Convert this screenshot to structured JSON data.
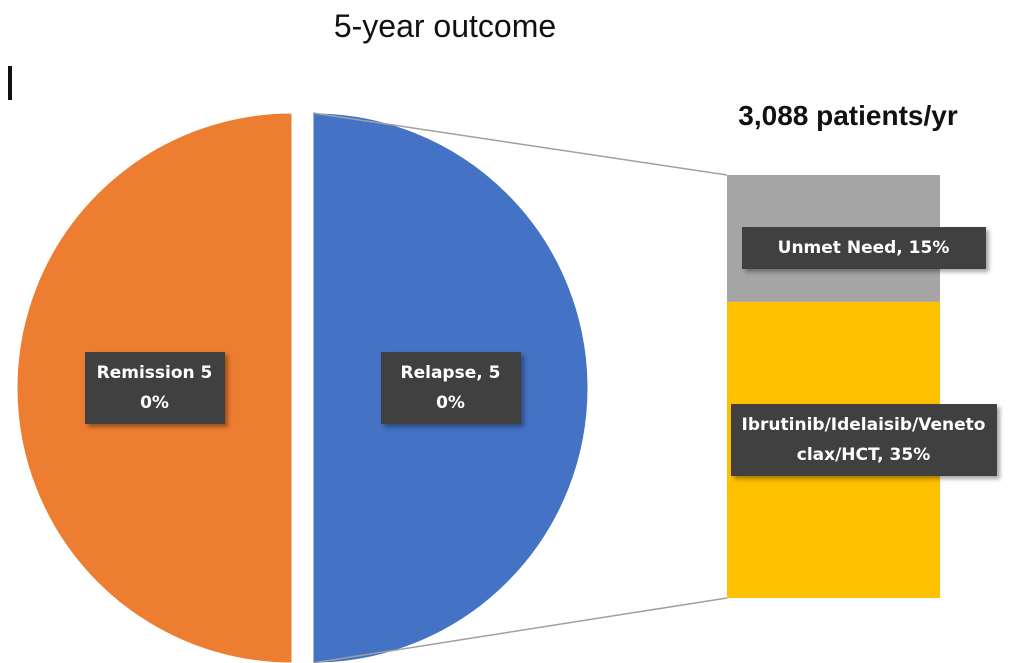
{
  "chart_data": {
    "type": "pie-of-bar",
    "title": "5-year outcome",
    "annotation": "3,088 patients/yr",
    "values": [
      50,
      50
    ],
    "value_labels": [
      "Remission 50%",
      "Relapse, 50%"
    ],
    "colors": [
      "#ED7D31",
      "#4472C4"
    ],
    "breakdown": {
      "type": "stacked-bar",
      "values": [
        15,
        35
      ],
      "value_labels": [
        "Unmet Need, 15%",
        "Ibrutinib/Idelaisib/Venetoclax/HCT, 35%"
      ],
      "colors": [
        "#A5A5A5",
        "#FFC000"
      ]
    }
  }
}
